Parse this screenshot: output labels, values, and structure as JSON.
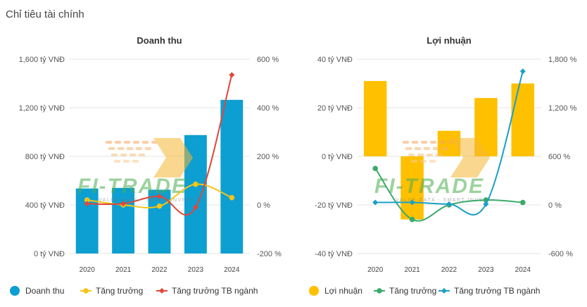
{
  "page": {
    "title": "Chỉ tiêu tài chính"
  },
  "colors": {
    "revenue_bar": "#0d9fd1",
    "profit_bar": "#ffc000",
    "growth_left": "#f5c518",
    "industry_left": "#e0473a",
    "growth_right": "#3aaa6b",
    "industry_right": "#1aa0c8",
    "grid": "#e6e6e6"
  },
  "watermark": {
    "brand": "FI-TRADE",
    "tagline": "VALUE DATA - SMART INVEST"
  },
  "chart_data": [
    {
      "type": "bar",
      "title": "Doanh thu",
      "categories": [
        "2020",
        "2021",
        "2022",
        "2023",
        "2024"
      ],
      "y_left": {
        "range": [
          0,
          1600
        ],
        "ticks": [
          "0 tỷ VNĐ",
          "400 tỷ VNĐ",
          "800 tỷ VNĐ",
          "1,200 tỷ VNĐ",
          "1,600 tỷ VNĐ"
        ]
      },
      "y_right": {
        "range": [
          -200,
          600
        ],
        "ticks": [
          "-200 %",
          "0 %",
          "200 %",
          "400 %",
          "600 %"
        ]
      },
      "series": [
        {
          "name": "Doanh thu",
          "kind": "bar",
          "axis": "left",
          "values": [
            535,
            540,
            525,
            975,
            1265
          ]
        },
        {
          "name": "Tăng trưởng",
          "kind": "line",
          "axis": "right",
          "values": [
            20,
            0,
            -5,
            85,
            30
          ]
        },
        {
          "name": "Tăng trưởng TB ngành",
          "kind": "line",
          "axis": "right",
          "values": [
            5,
            5,
            35,
            -10,
            535
          ]
        }
      ],
      "legend_position": "bottom",
      "grid": true
    },
    {
      "type": "bar",
      "title": "Lợi nhuận",
      "categories": [
        "2020",
        "2021",
        "2022",
        "2023",
        "2024"
      ],
      "y_left": {
        "range": [
          -40,
          40
        ],
        "ticks": [
          "-40 tỷ VNĐ",
          "-20 tỷ VNĐ",
          "0 tỷ VNĐ",
          "20 tỷ VNĐ",
          "40 tỷ VNĐ"
        ]
      },
      "y_right": {
        "range": [
          -600,
          1800
        ],
        "ticks": [
          "-600 %",
          "0 %",
          "600 %",
          "1,200 %",
          "1,800 %"
        ]
      },
      "series": [
        {
          "name": "Lợi nhuận",
          "kind": "bar",
          "axis": "left",
          "values": [
            31,
            -26,
            10.5,
            24,
            30
          ]
        },
        {
          "name": "Tăng trưởng",
          "kind": "line",
          "axis": "right",
          "values": [
            450,
            -180,
            0,
            60,
            30
          ]
        },
        {
          "name": "Tăng trưởng TB ngành",
          "kind": "line",
          "axis": "right",
          "values": [
            30,
            30,
            10,
            10,
            1650
          ]
        }
      ],
      "legend_position": "bottom",
      "grid": true
    }
  ]
}
